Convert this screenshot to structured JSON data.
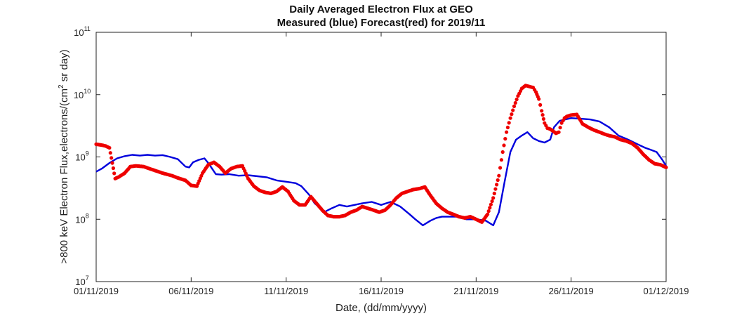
{
  "chart_data": {
    "type": "line",
    "title": "Daily Averaged Electron Flux at GEO",
    "subtitle": "Measured (blue) Forecast(red) for 2019/11",
    "xlabel": "Date, (dd/mm/yyyy)",
    "ylabel": {
      "before": ">800 keV Electron Flux,electrons/(cm",
      "sup": "2",
      "after": " sr day)"
    },
    "x_range": [
      "01/11/2019",
      "01/12/2019"
    ],
    "y_scale": "log",
    "ylim": [
      10000000,
      100000000000
    ],
    "x_ticks": [
      "01/11/2019",
      "06/11/2019",
      "11/11/2019",
      "16/11/2019",
      "21/11/2019",
      "26/11/2019",
      "01/12/2019"
    ],
    "y_ticks": [
      {
        "base": "10",
        "exp": "7"
      },
      {
        "base": "10",
        "exp": "8"
      },
      {
        "base": "10",
        "exp": "9"
      },
      {
        "base": "10",
        "exp": "10"
      },
      {
        "base": "10",
        "exp": "11"
      }
    ],
    "grid": false,
    "series": [
      {
        "name": "Measured",
        "color": "#0000dd",
        "style": "line",
        "x": [
          0.0,
          0.3,
          0.7,
          1.1,
          1.5,
          1.9,
          2.3,
          2.7,
          3.1,
          3.5,
          3.9,
          4.3,
          4.7,
          4.9,
          5.1,
          5.4,
          5.7,
          5.9,
          6.1,
          6.3,
          6.6,
          7.0,
          7.5,
          8.0,
          8.5,
          9.0,
          9.5,
          10.0,
          10.5,
          10.8,
          11.2,
          11.5,
          11.7,
          12.0,
          12.4,
          12.8,
          13.2,
          13.6,
          14.0,
          14.5,
          15.0,
          15.5,
          16.0,
          16.5,
          16.8,
          17.2,
          17.6,
          17.9,
          18.2,
          18.6,
          19.0,
          19.5,
          20.0,
          20.5,
          20.9,
          21.2,
          21.5,
          21.8,
          22.1,
          22.4,
          22.7,
          23.0,
          23.3,
          23.6,
          23.9,
          24.1,
          24.4,
          24.7,
          25.0,
          25.5,
          26.0,
          26.5,
          27.0,
          27.5,
          28.0,
          28.5,
          28.9,
          29.2,
          29.5,
          29.8,
          30.0
        ],
        "y": [
          580000000,
          650000000,
          800000000,
          950000000,
          1030000000,
          1080000000,
          1050000000,
          1080000000,
          1050000000,
          1070000000,
          1000000000,
          920000000,
          700000000,
          680000000,
          820000000,
          900000000,
          950000000,
          800000000,
          650000000,
          530000000,
          520000000,
          530000000,
          500000000,
          510000000,
          490000000,
          470000000,
          420000000,
          400000000,
          380000000,
          340000000,
          250000000,
          180000000,
          160000000,
          130000000,
          150000000,
          170000000,
          160000000,
          170000000,
          180000000,
          190000000,
          170000000,
          190000000,
          160000000,
          120000000,
          100000000,
          80000000,
          95000000,
          105000000,
          110000000,
          110000000,
          110000000,
          100000000,
          100000000,
          95000000,
          80000000,
          130000000,
          400000000,
          1200000000,
          1900000000,
          2200000000,
          2500000000,
          2000000000,
          1800000000,
          1700000000,
          1900000000,
          3000000000,
          3800000000,
          4000000000,
          4200000000,
          4100000000,
          4000000000,
          3700000000,
          3000000000,
          2200000000,
          1900000000,
          1600000000,
          1400000000,
          1300000000,
          1200000000,
          900000000,
          720000000
        ]
      },
      {
        "name": "Forecast",
        "color": "#ee0000",
        "style": "points",
        "x": [
          0.0,
          0.3,
          0.5,
          0.7,
          0.85,
          1.0,
          1.2,
          1.5,
          1.8,
          2.1,
          2.5,
          3.0,
          3.5,
          4.0,
          4.3,
          4.7,
          5.0,
          5.3,
          5.6,
          5.9,
          6.2,
          6.5,
          6.8,
          7.1,
          7.4,
          7.7,
          8.0,
          8.3,
          8.6,
          8.9,
          9.2,
          9.5,
          9.8,
          10.1,
          10.4,
          10.7,
          11.0,
          11.3,
          11.6,
          11.9,
          12.2,
          12.5,
          12.8,
          13.1,
          13.4,
          13.7,
          14.0,
          14.3,
          14.6,
          14.9,
          15.2,
          15.5,
          15.8,
          16.1,
          16.4,
          16.7,
          17.0,
          17.3,
          17.6,
          17.9,
          18.2,
          18.5,
          18.8,
          19.1,
          19.4,
          19.7,
          20.0,
          20.3,
          20.6,
          20.9,
          21.2,
          21.4,
          21.6,
          21.8,
          22.0,
          22.2,
          22.4,
          22.6,
          22.8,
          23.0,
          23.15,
          23.3,
          23.45,
          23.6,
          23.75,
          23.9,
          24.05,
          24.2,
          24.35,
          24.5,
          24.65,
          24.8,
          25.0,
          25.3,
          25.6,
          25.9,
          26.2,
          26.5,
          26.8,
          27.0,
          27.3,
          27.6,
          27.9,
          28.2,
          28.5,
          28.8,
          29.1,
          29.4,
          29.7,
          30.0
        ],
        "y": [
          1600000000,
          1550000000,
          1500000000,
          1400000000,
          800000000,
          450000000,
          480000000,
          550000000,
          700000000,
          720000000,
          700000000,
          620000000,
          550000000,
          500000000,
          460000000,
          420000000,
          350000000,
          340000000,
          550000000,
          750000000,
          820000000,
          700000000,
          550000000,
          650000000,
          700000000,
          720000000,
          450000000,
          340000000,
          290000000,
          270000000,
          260000000,
          280000000,
          330000000,
          280000000,
          200000000,
          170000000,
          170000000,
          230000000,
          180000000,
          140000000,
          115000000,
          110000000,
          110000000,
          115000000,
          130000000,
          140000000,
          160000000,
          150000000,
          140000000,
          130000000,
          140000000,
          170000000,
          220000000,
          260000000,
          280000000,
          300000000,
          310000000,
          330000000,
          240000000,
          180000000,
          150000000,
          130000000,
          120000000,
          110000000,
          105000000,
          110000000,
          100000000,
          90000000,
          120000000,
          220000000,
          500000000,
          1200000000,
          2500000000,
          4200000000,
          6500000000,
          9500000000,
          12500000000,
          14000000000,
          13500000000,
          13000000000,
          11000000000,
          8500000000,
          5500000000,
          3500000000,
          2900000000,
          2800000000,
          2600000000,
          2400000000,
          2500000000,
          3500000000,
          4200000000,
          4500000000,
          4700000000,
          4800000000,
          3400000000,
          3000000000,
          2700000000,
          2500000000,
          2300000000,
          2200000000,
          2100000000,
          1900000000,
          1800000000,
          1650000000,
          1400000000,
          1100000000,
          900000000,
          780000000,
          750000000,
          680000000
        ]
      }
    ]
  }
}
